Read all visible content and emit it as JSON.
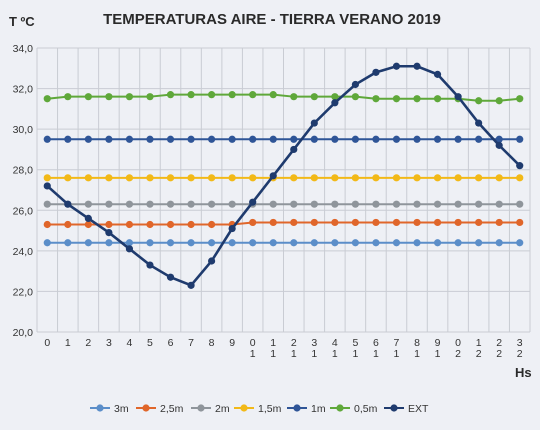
{
  "chart_data": {
    "type": "line",
    "title": "TEMPERATURAS AIRE - TIERRA   VERANO 2019",
    "ylabel": "T ºC",
    "xlabel": "Hs",
    "ylim": [
      20,
      34
    ],
    "yticks": [
      "20,0",
      "22,0",
      "24,0",
      "26,0",
      "28,0",
      "30,0",
      "32,0",
      "34,0"
    ],
    "ytick_values": [
      20,
      22,
      24,
      26,
      28,
      30,
      32,
      34
    ],
    "x": [
      0,
      1,
      2,
      3,
      4,
      5,
      6,
      7,
      8,
      9,
      10,
      11,
      12,
      13,
      14,
      15,
      16,
      17,
      18,
      19,
      20,
      21,
      22,
      23
    ],
    "xtick_labels": [
      [
        "0"
      ],
      [
        "1"
      ],
      [
        "2"
      ],
      [
        "3"
      ],
      [
        "4"
      ],
      [
        "5"
      ],
      [
        "6"
      ],
      [
        "7"
      ],
      [
        "8"
      ],
      [
        "9"
      ],
      [
        "0",
        "1"
      ],
      [
        "1",
        "1"
      ],
      [
        "2",
        "1"
      ],
      [
        "3",
        "1"
      ],
      [
        "4",
        "1"
      ],
      [
        "5",
        "1"
      ],
      [
        "6",
        "1"
      ],
      [
        "7",
        "1"
      ],
      [
        "8",
        "1"
      ],
      [
        "9",
        "1"
      ],
      [
        "0",
        "2"
      ],
      [
        "1",
        "2"
      ],
      [
        "2",
        "2"
      ],
      [
        "3",
        "2"
      ]
    ],
    "grid": true,
    "legend_position": "bottom",
    "series": [
      {
        "name": "3m",
        "color": "#5b8ec9",
        "values": [
          24.4,
          24.4,
          24.4,
          24.4,
          24.4,
          24.4,
          24.4,
          24.4,
          24.4,
          24.4,
          24.4,
          24.4,
          24.4,
          24.4,
          24.4,
          24.4,
          24.4,
          24.4,
          24.4,
          24.4,
          24.4,
          24.4,
          24.4,
          24.4
        ]
      },
      {
        "name": "2,5m",
        "color": "#e0662a",
        "values": [
          25.3,
          25.3,
          25.3,
          25.3,
          25.3,
          25.3,
          25.3,
          25.3,
          25.3,
          25.3,
          25.4,
          25.4,
          25.4,
          25.4,
          25.4,
          25.4,
          25.4,
          25.4,
          25.4,
          25.4,
          25.4,
          25.4,
          25.4,
          25.4
        ]
      },
      {
        "name": "2m",
        "color": "#8f959b",
        "values": [
          26.3,
          26.3,
          26.3,
          26.3,
          26.3,
          26.3,
          26.3,
          26.3,
          26.3,
          26.3,
          26.3,
          26.3,
          26.3,
          26.3,
          26.3,
          26.3,
          26.3,
          26.3,
          26.3,
          26.3,
          26.3,
          26.3,
          26.3,
          26.3
        ]
      },
      {
        "name": "1,5m",
        "color": "#f2b918",
        "values": [
          27.6,
          27.6,
          27.6,
          27.6,
          27.6,
          27.6,
          27.6,
          27.6,
          27.6,
          27.6,
          27.6,
          27.6,
          27.6,
          27.6,
          27.6,
          27.6,
          27.6,
          27.6,
          27.6,
          27.6,
          27.6,
          27.6,
          27.6,
          27.6
        ]
      },
      {
        "name": "1m",
        "color": "#2f5597",
        "values": [
          29.5,
          29.5,
          29.5,
          29.5,
          29.5,
          29.5,
          29.5,
          29.5,
          29.5,
          29.5,
          29.5,
          29.5,
          29.5,
          29.5,
          29.5,
          29.5,
          29.5,
          29.5,
          29.5,
          29.5,
          29.5,
          29.5,
          29.5,
          29.5
        ]
      },
      {
        "name": "0,5m",
        "color": "#5fa83a",
        "values": [
          31.5,
          31.6,
          31.6,
          31.6,
          31.6,
          31.6,
          31.7,
          31.7,
          31.7,
          31.7,
          31.7,
          31.7,
          31.6,
          31.6,
          31.6,
          31.6,
          31.5,
          31.5,
          31.5,
          31.5,
          31.5,
          31.4,
          31.4,
          31.5
        ]
      },
      {
        "name": "EXT",
        "color": "#1f3b6e",
        "values": [
          27.2,
          26.3,
          25.6,
          24.9,
          24.1,
          23.3,
          22.7,
          22.3,
          23.5,
          25.1,
          26.4,
          27.7,
          29.0,
          30.3,
          31.3,
          32.2,
          32.8,
          33.1,
          33.1,
          32.7,
          31.6,
          30.3,
          29.2,
          28.2
        ]
      }
    ]
  }
}
